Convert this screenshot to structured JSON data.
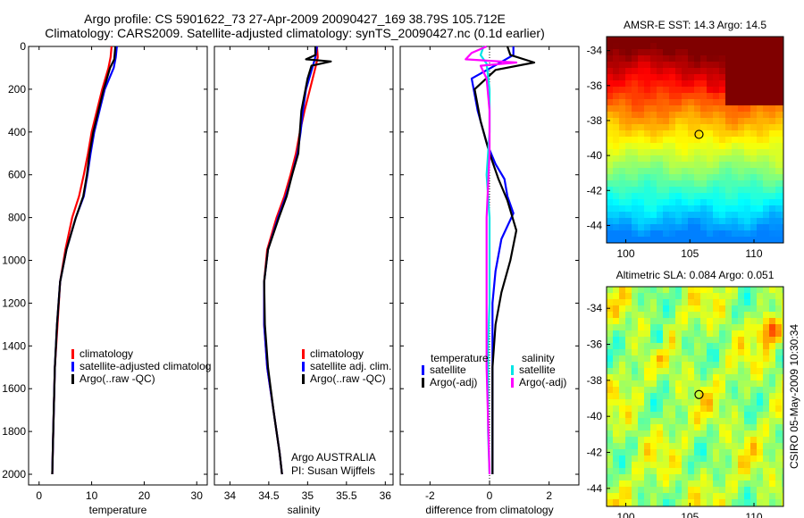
{
  "title": {
    "line1": "Argo profile: CS 5901622_73 27-Apr-2009 20090427_169 38.79S 105.712E",
    "line2": "Climatology: CARS2009. Satellite-adjusted climatology: synTS_20090427.nc (0.1d earlier)"
  },
  "chart_data": [
    {
      "type": "line",
      "xlabel": "temperature",
      "xlim": [
        -2,
        32
      ],
      "xticks": [
        "0",
        "10",
        "20",
        "30"
      ],
      "ylim": [
        2050,
        0
      ],
      "yticks": [
        "0",
        "200",
        "400",
        "600",
        "800",
        "1000",
        "1200",
        "1400",
        "1600",
        "1800",
        "2000"
      ],
      "legend": {
        "placement": "lower-right",
        "labels": [
          "climatology",
          "satellite-adjusted climatolog",
          "Argo(..raw -QC)"
        ]
      },
      "series": [
        {
          "name": "climatology",
          "color": "#ff0000",
          "x": [
            13.8,
            13.6,
            13.2,
            12.0,
            11.0,
            10.0,
            9.3,
            8.5,
            7.6,
            6.3,
            5.0,
            4.0,
            3.5,
            3.0,
            2.7,
            2.5
          ],
          "y": [
            0,
            50,
            100,
            200,
            300,
            400,
            500,
            600,
            700,
            800,
            950,
            1100,
            1300,
            1500,
            1800,
            2000
          ]
        },
        {
          "name": "satellite-adjusted climatolog",
          "color": "#0000ff",
          "x": [
            14.8,
            14.6,
            14.2,
            12.5,
            11.5,
            10.5,
            9.8,
            9.2,
            8.5,
            7.0,
            5.2,
            4.0,
            3.4,
            3.0,
            2.7,
            2.5
          ],
          "y": [
            0,
            50,
            100,
            200,
            300,
            400,
            500,
            600,
            700,
            800,
            950,
            1100,
            1300,
            1500,
            1800,
            2000
          ]
        },
        {
          "name": "Argo(..raw -QC)",
          "color": "#000000",
          "x": [
            14.5,
            14.4,
            14.3,
            13.5,
            12.3,
            11.3,
            10.3,
            9.6,
            9.1,
            8.4,
            7.0,
            5.2,
            4.0,
            3.4,
            3.0,
            2.7,
            2.5
          ],
          "y": [
            0,
            30,
            60,
            100,
            200,
            300,
            400,
            500,
            600,
            700,
            800,
            950,
            1100,
            1300,
            1500,
            1800,
            2000
          ]
        }
      ]
    },
    {
      "type": "line",
      "xlabel": "salinity",
      "xlim": [
        33.8,
        36.1
      ],
      "xticks": [
        "34",
        "34.5",
        "35",
        "35.5",
        "36"
      ],
      "ylim": [
        2050,
        0
      ],
      "legend": {
        "placement": "lower-right",
        "labels": [
          "climatology",
          "satellite adj. clim.",
          "Argo(..raw -QC)"
        ]
      },
      "annotation": [
        "Argo AUSTRALIA",
        "PI: Susan Wijffels"
      ],
      "series": [
        {
          "name": "climatology",
          "color": "#ff0000",
          "x": [
            35.12,
            35.13,
            35.1,
            35.03,
            34.96,
            34.9,
            34.85,
            34.78,
            34.7,
            34.6,
            34.48,
            34.44,
            34.44,
            34.48,
            34.56,
            34.64,
            34.67
          ],
          "y": [
            0,
            50,
            100,
            200,
            300,
            400,
            500,
            600,
            700,
            800,
            950,
            1100,
            1300,
            1500,
            1700,
            1900,
            2000
          ]
        },
        {
          "name": "satellite adj. clim.",
          "color": "#0000ff",
          "x": [
            35.12,
            35.1,
            35.06,
            34.98,
            34.94,
            34.91,
            34.87,
            34.8,
            34.72,
            34.62,
            34.49,
            34.44,
            34.44,
            34.48,
            34.56,
            34.64,
            34.67
          ],
          "y": [
            0,
            50,
            100,
            200,
            300,
            400,
            500,
            600,
            700,
            800,
            950,
            1100,
            1300,
            1500,
            1700,
            1900,
            2000
          ]
        },
        {
          "name": "Argo(..raw -QC)",
          "color": "#000000",
          "x": [
            35.1,
            35.1,
            34.98,
            35.3,
            35.05,
            35.0,
            34.92,
            34.88,
            34.8,
            34.73,
            34.63,
            34.49,
            34.44,
            34.45,
            34.49,
            34.56,
            34.64,
            34.67
          ],
          "y": [
            0,
            40,
            60,
            70,
            90,
            150,
            300,
            500,
            600,
            700,
            800,
            950,
            1100,
            1300,
            1500,
            1700,
            1900,
            2000
          ]
        }
      ]
    },
    {
      "type": "line",
      "xlabel": "difference from climatology",
      "xlim": [
        -3.0,
        3.0
      ],
      "xticks": [
        "-2",
        "0",
        "2"
      ],
      "ylim": [
        2050,
        0
      ],
      "legend": {
        "placement": "lower-right",
        "group_titles": [
          "temperature",
          "salinity"
        ],
        "labels": [
          "satellite",
          "Argo(-adj)",
          "satellite",
          "Argo(-adj)"
        ]
      },
      "zero_line": "dotted",
      "series": [
        {
          "name": "temperature satellite",
          "color": "#0000ff",
          "x": [
            0.8,
            0.8,
            0.3,
            -0.6,
            -0.4,
            -0.1,
            0.2,
            0.5,
            0.6,
            0.8,
            0.4,
            0.2,
            0.1,
            0.1,
            0.1,
            0.1
          ],
          "y": [
            0,
            40,
            80,
            150,
            300,
            450,
            550,
            620,
            700,
            780,
            900,
            1050,
            1200,
            1400,
            1700,
            2000
          ]
        },
        {
          "name": "temperature Argo(-adj)",
          "color": "#000000",
          "x": [
            0.6,
            0.7,
            1.5,
            0.2,
            -0.5,
            -0.3,
            0.0,
            0.3,
            0.6,
            0.9,
            0.7,
            0.4,
            0.2,
            0.1,
            0.1,
            0.1
          ],
          "y": [
            0,
            40,
            75,
            110,
            200,
            350,
            500,
            620,
            720,
            860,
            1000,
            1150,
            1300,
            1500,
            1700,
            2000
          ]
        },
        {
          "name": "salinity satellite",
          "color": "#00e5e5",
          "x": [
            -0.2,
            -0.3,
            -0.1,
            0.0,
            0.0,
            -0.1,
            0.0,
            0.0,
            0.0,
            -0.05,
            -0.05,
            -0.05,
            0.0
          ],
          "y": [
            0,
            40,
            80,
            200,
            400,
            600,
            800,
            1000,
            1200,
            1400,
            1600,
            1800,
            2000
          ]
        },
        {
          "name": "salinity Argo(-adj)",
          "color": "#ff00ff",
          "x": [
            -0.1,
            -0.6,
            -0.8,
            0.9,
            -0.3,
            -0.1,
            0.0,
            0.0,
            -0.1,
            -0.1,
            -0.1,
            0.0
          ],
          "y": [
            0,
            30,
            60,
            75,
            90,
            150,
            300,
            500,
            800,
            1100,
            1500,
            2000
          ]
        }
      ]
    },
    {
      "type": "heatmap",
      "title": "AMSR-E SST: 14.3 Argo: 14.5",
      "xlim": [
        98.5,
        112.3
      ],
      "ylim": [
        -45.0,
        -33.2
      ],
      "xticks": [
        "100",
        "105",
        "110"
      ],
      "yticks": [
        "-34",
        "-36",
        "-38",
        "-40",
        "-42",
        "-44"
      ],
      "marker": {
        "lon": 105.712,
        "lat": -38.79
      }
    },
    {
      "type": "heatmap",
      "title": "Altimetric SLA: 0.084 Argo: 0.051",
      "xlim": [
        98.5,
        112.3
      ],
      "ylim": [
        -45.0,
        -32.8
      ],
      "xticks": [
        "100",
        "105",
        "110"
      ],
      "yticks": [
        "-34",
        "-36",
        "-38",
        "-40",
        "-42",
        "-44"
      ],
      "marker": {
        "lon": 105.712,
        "lat": -38.79
      },
      "side_label": "CSIRO 05-May-2009 10:30:34"
    }
  ]
}
